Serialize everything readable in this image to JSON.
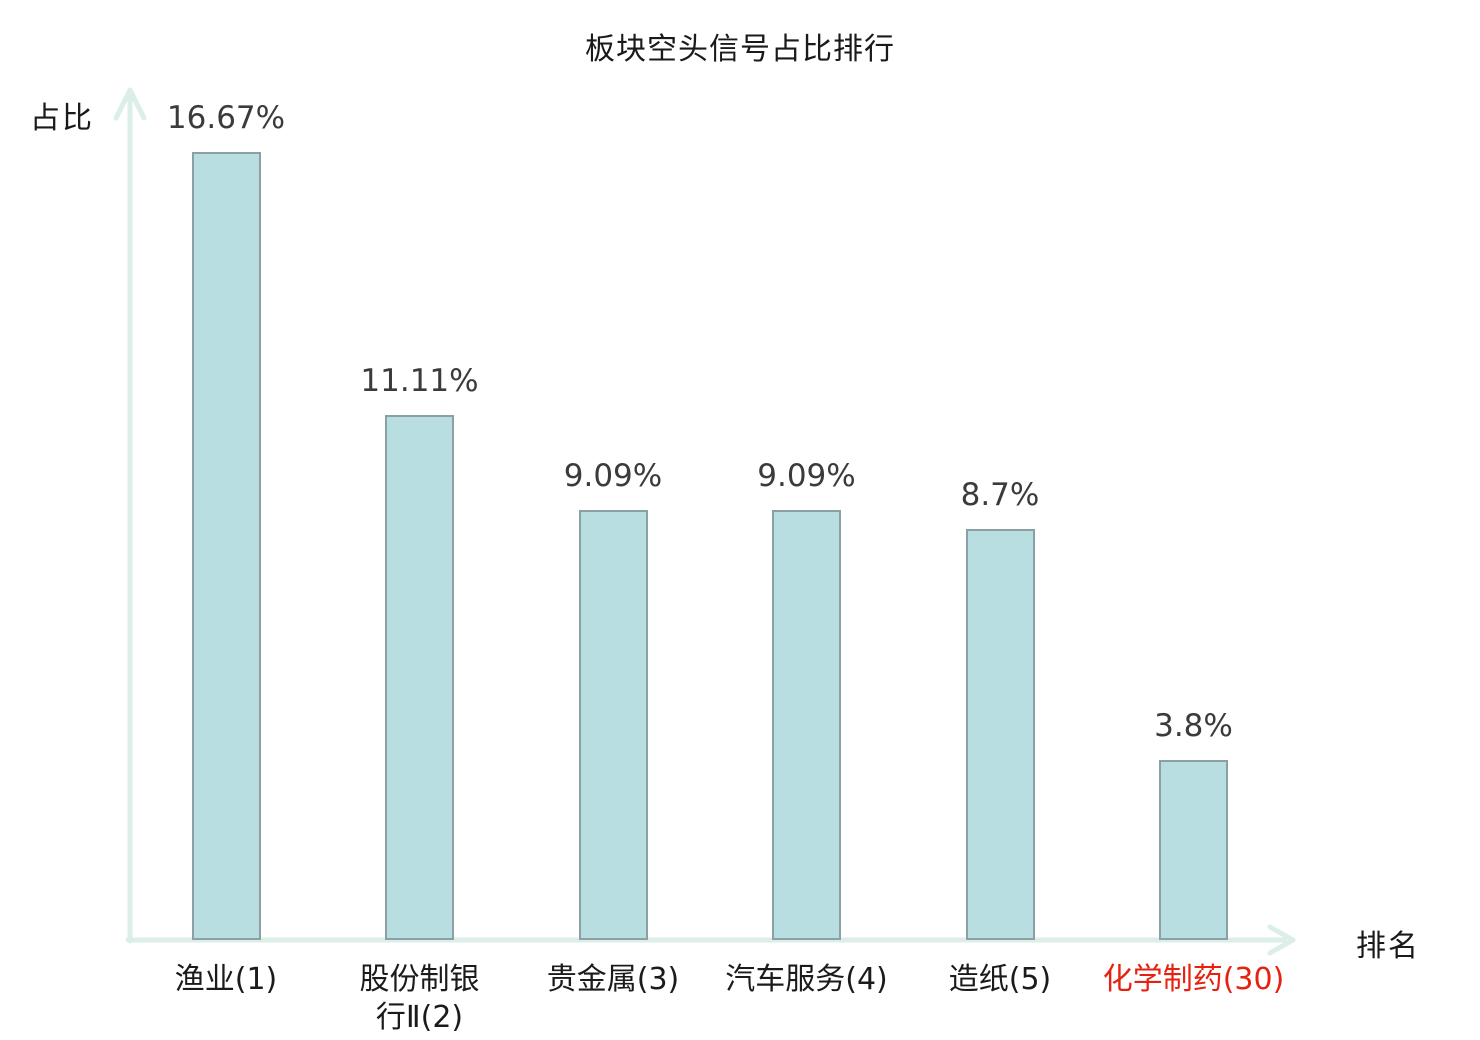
{
  "chart_data": {
    "type": "bar",
    "title": "板块空头信号占比排行",
    "ylabel": "占比",
    "xlabel": "排名",
    "categories": [
      "渔业(1)",
      "股份制银\n行Ⅱ(2)",
      "贵金属(3)",
      "汽车服务(4)",
      "造纸(5)",
      "化学制药(30)"
    ],
    "values": [
      16.67,
      11.11,
      9.09,
      9.09,
      8.7,
      3.8
    ],
    "value_labels": [
      "16.67%",
      "11.11%",
      "9.09%",
      "9.09%",
      "8.7%",
      "3.8%"
    ],
    "highlight_index": 5,
    "ylim": [
      0,
      18.5
    ],
    "grid": false,
    "legend": false,
    "colors": {
      "bar_fill": "#b9dee2",
      "bar_border": "#8aa0a2",
      "axis": "#dbeee8",
      "value_label": "#3b3b3b",
      "category_label": "#1b1b1b",
      "highlight_label": "#e7210f",
      "title": "#1a1a1a"
    }
  }
}
